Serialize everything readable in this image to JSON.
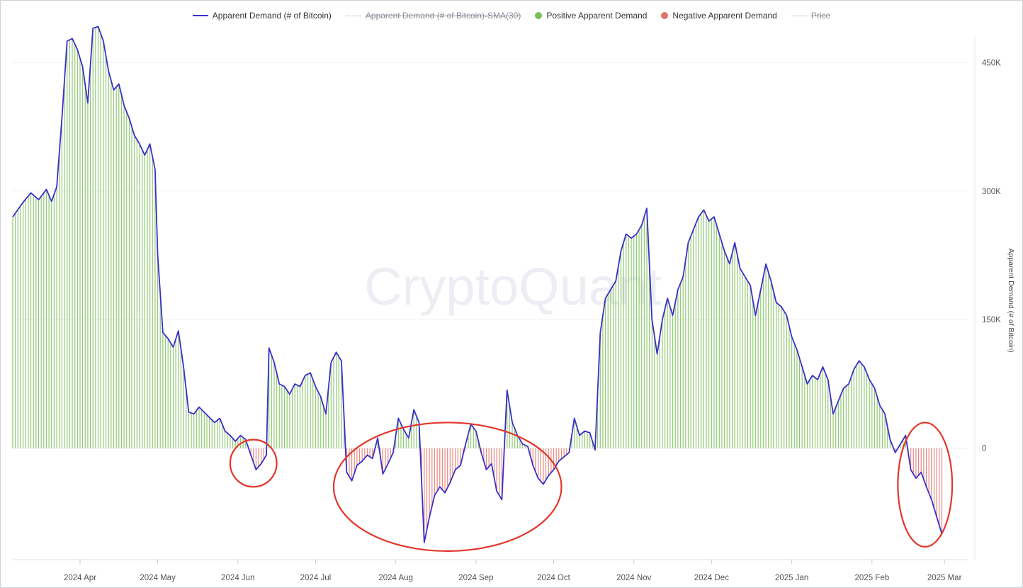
{
  "legend": {
    "demand": "Apparent Demand (# of Bitcoin)",
    "sma": "Apparent Demand (# of Bitcoin)-SMA(30)",
    "positive": "Positive Apparent Demand",
    "negative": "Negative Apparent Demand",
    "price": "Price"
  },
  "watermark": "CryptoQuant",
  "colors": {
    "line": "#3b2fc9",
    "positive": "#7cbf5a",
    "negative": "#e07368",
    "annotation": "#e2372b",
    "grid": "#eef0f3"
  },
  "chart_data": {
    "type": "line",
    "title": "",
    "xlabel": "",
    "ylabel": "Apparent Demand (# of Bitcoin)",
    "ylim": [
      -130000,
      480000
    ],
    "y_ticks": [
      0,
      150000,
      300000,
      450000
    ],
    "y_tick_labels": [
      "0",
      "150K",
      "300K",
      "450K"
    ],
    "x_range": [
      "2024-03-06",
      "2025-03-10"
    ],
    "x_ticks": [
      "2024-04-01",
      "2024-05-01",
      "2024-06-01",
      "2024-07-01",
      "2024-08-01",
      "2024-09-01",
      "2024-10-01",
      "2024-11-01",
      "2024-12-01",
      "2025-01-01",
      "2025-02-01",
      "2025-03-01"
    ],
    "x_tick_labels": [
      "2024 Apr",
      "2024 May",
      "2024 Jun",
      "2024 Jul",
      "2024 Aug",
      "2024 Sep",
      "2024 Oct",
      "2024 Nov",
      "2024 Dec",
      "2025 Jan",
      "2025 Feb",
      "2025 Mar"
    ],
    "grid": true,
    "legend_position": "top-center",
    "series": [
      {
        "name": "Apparent Demand (# of Bitcoin)",
        "points": [
          [
            "2024-03-06",
            270000
          ],
          [
            "2024-03-10",
            287000
          ],
          [
            "2024-03-13",
            298000
          ],
          [
            "2024-03-16",
            290000
          ],
          [
            "2024-03-19",
            302000
          ],
          [
            "2024-03-21",
            288000
          ],
          [
            "2024-03-23",
            305000
          ],
          [
            "2024-03-25",
            385000
          ],
          [
            "2024-03-27",
            475000
          ],
          [
            "2024-03-29",
            478000
          ],
          [
            "2024-03-31",
            465000
          ],
          [
            "2024-04-02",
            445000
          ],
          [
            "2024-04-04",
            403000
          ],
          [
            "2024-04-06",
            490000
          ],
          [
            "2024-04-08",
            492000
          ],
          [
            "2024-04-10",
            475000
          ],
          [
            "2024-04-12",
            440000
          ],
          [
            "2024-04-14",
            418000
          ],
          [
            "2024-04-16",
            425000
          ],
          [
            "2024-04-18",
            400000
          ],
          [
            "2024-04-20",
            385000
          ],
          [
            "2024-04-22",
            365000
          ],
          [
            "2024-04-24",
            355000
          ],
          [
            "2024-04-26",
            342000
          ],
          [
            "2024-04-28",
            355000
          ],
          [
            "2024-04-30",
            325000
          ],
          [
            "2024-05-01",
            225000
          ],
          [
            "2024-05-03",
            135000
          ],
          [
            "2024-05-05",
            128000
          ],
          [
            "2024-05-07",
            118000
          ],
          [
            "2024-05-09",
            137000
          ],
          [
            "2024-05-11",
            95000
          ],
          [
            "2024-05-13",
            42000
          ],
          [
            "2024-05-15",
            40000
          ],
          [
            "2024-05-17",
            48000
          ],
          [
            "2024-05-19",
            42000
          ],
          [
            "2024-05-21",
            36000
          ],
          [
            "2024-05-23",
            30000
          ],
          [
            "2024-05-25",
            35000
          ],
          [
            "2024-05-27",
            20000
          ],
          [
            "2024-05-29",
            15000
          ],
          [
            "2024-05-31",
            8000
          ],
          [
            "2024-06-02",
            15000
          ],
          [
            "2024-06-04",
            10000
          ],
          [
            "2024-06-06",
            -8000
          ],
          [
            "2024-06-08",
            -25000
          ],
          [
            "2024-06-10",
            -18000
          ],
          [
            "2024-06-12",
            -8000
          ],
          [
            "2024-06-13",
            117000
          ],
          [
            "2024-06-15",
            100000
          ],
          [
            "2024-06-17",
            75000
          ],
          [
            "2024-06-19",
            72000
          ],
          [
            "2024-06-21",
            63000
          ],
          [
            "2024-06-23",
            75000
          ],
          [
            "2024-06-25",
            72000
          ],
          [
            "2024-06-27",
            85000
          ],
          [
            "2024-06-29",
            88000
          ],
          [
            "2024-07-01",
            72000
          ],
          [
            "2024-07-03",
            60000
          ],
          [
            "2024-07-05",
            40000
          ],
          [
            "2024-07-07",
            100000
          ],
          [
            "2024-07-09",
            112000
          ],
          [
            "2024-07-11",
            102000
          ],
          [
            "2024-07-13",
            -28000
          ],
          [
            "2024-07-15",
            -38000
          ],
          [
            "2024-07-17",
            -20000
          ],
          [
            "2024-07-19",
            -15000
          ],
          [
            "2024-07-21",
            -8000
          ],
          [
            "2024-07-23",
            -12000
          ],
          [
            "2024-07-25",
            12000
          ],
          [
            "2024-07-27",
            -30000
          ],
          [
            "2024-07-29",
            -18000
          ],
          [
            "2024-07-31",
            -5000
          ],
          [
            "2024-08-02",
            35000
          ],
          [
            "2024-08-04",
            22000
          ],
          [
            "2024-08-06",
            12000
          ],
          [
            "2024-08-08",
            45000
          ],
          [
            "2024-08-10",
            30000
          ],
          [
            "2024-08-12",
            -110000
          ],
          [
            "2024-08-14",
            -80000
          ],
          [
            "2024-08-16",
            -55000
          ],
          [
            "2024-08-18",
            -45000
          ],
          [
            "2024-08-20",
            -52000
          ],
          [
            "2024-08-22",
            -40000
          ],
          [
            "2024-08-24",
            -25000
          ],
          [
            "2024-08-26",
            -20000
          ],
          [
            "2024-08-28",
            5000
          ],
          [
            "2024-08-30",
            28000
          ],
          [
            "2024-09-01",
            20000
          ],
          [
            "2024-09-03",
            -5000
          ],
          [
            "2024-09-05",
            -25000
          ],
          [
            "2024-09-07",
            -18000
          ],
          [
            "2024-09-09",
            -50000
          ],
          [
            "2024-09-11",
            -60000
          ],
          [
            "2024-09-13",
            68000
          ],
          [
            "2024-09-15",
            30000
          ],
          [
            "2024-09-17",
            15000
          ],
          [
            "2024-09-19",
            5000
          ],
          [
            "2024-09-21",
            2000
          ],
          [
            "2024-09-23",
            -20000
          ],
          [
            "2024-09-25",
            -35000
          ],
          [
            "2024-09-27",
            -42000
          ],
          [
            "2024-09-29",
            -32000
          ],
          [
            "2024-10-01",
            -25000
          ],
          [
            "2024-10-03",
            -15000
          ],
          [
            "2024-10-05",
            -10000
          ],
          [
            "2024-10-07",
            -5000
          ],
          [
            "2024-10-09",
            35000
          ],
          [
            "2024-10-11",
            15000
          ],
          [
            "2024-10-13",
            20000
          ],
          [
            "2024-10-15",
            18000
          ],
          [
            "2024-10-17",
            -2000
          ],
          [
            "2024-10-19",
            135000
          ],
          [
            "2024-10-21",
            175000
          ],
          [
            "2024-10-23",
            185000
          ],
          [
            "2024-10-25",
            195000
          ],
          [
            "2024-10-27",
            230000
          ],
          [
            "2024-10-29",
            250000
          ],
          [
            "2024-10-31",
            245000
          ],
          [
            "2024-11-02",
            250000
          ],
          [
            "2024-11-04",
            260000
          ],
          [
            "2024-11-06",
            280000
          ],
          [
            "2024-11-08",
            150000
          ],
          [
            "2024-11-10",
            110000
          ],
          [
            "2024-11-12",
            150000
          ],
          [
            "2024-11-14",
            175000
          ],
          [
            "2024-11-16",
            155000
          ],
          [
            "2024-11-18",
            185000
          ],
          [
            "2024-11-20",
            200000
          ],
          [
            "2024-11-22",
            240000
          ],
          [
            "2024-11-24",
            255000
          ],
          [
            "2024-11-26",
            270000
          ],
          [
            "2024-11-28",
            278000
          ],
          [
            "2024-11-30",
            265000
          ],
          [
            "2024-12-02",
            270000
          ],
          [
            "2024-12-04",
            250000
          ],
          [
            "2024-12-06",
            230000
          ],
          [
            "2024-12-08",
            215000
          ],
          [
            "2024-12-10",
            240000
          ],
          [
            "2024-12-12",
            210000
          ],
          [
            "2024-12-14",
            200000
          ],
          [
            "2024-12-16",
            190000
          ],
          [
            "2024-12-18",
            155000
          ],
          [
            "2024-12-20",
            185000
          ],
          [
            "2024-12-22",
            215000
          ],
          [
            "2024-12-24",
            195000
          ],
          [
            "2024-12-26",
            170000
          ],
          [
            "2024-12-28",
            165000
          ],
          [
            "2024-12-30",
            155000
          ],
          [
            "2025-01-01",
            130000
          ],
          [
            "2025-01-03",
            115000
          ],
          [
            "2025-01-05",
            95000
          ],
          [
            "2025-01-07",
            75000
          ],
          [
            "2025-01-09",
            85000
          ],
          [
            "2025-01-11",
            80000
          ],
          [
            "2025-01-13",
            95000
          ],
          [
            "2025-01-15",
            80000
          ],
          [
            "2025-01-17",
            40000
          ],
          [
            "2025-01-19",
            55000
          ],
          [
            "2025-01-21",
            70000
          ],
          [
            "2025-01-23",
            75000
          ],
          [
            "2025-01-25",
            92000
          ],
          [
            "2025-01-27",
            102000
          ],
          [
            "2025-01-29",
            95000
          ],
          [
            "2025-01-31",
            80000
          ],
          [
            "2025-02-02",
            70000
          ],
          [
            "2025-02-04",
            50000
          ],
          [
            "2025-02-06",
            40000
          ],
          [
            "2025-02-08",
            10000
          ],
          [
            "2025-02-10",
            -5000
          ],
          [
            "2025-02-12",
            5000
          ],
          [
            "2025-02-14",
            15000
          ],
          [
            "2025-02-16",
            -25000
          ],
          [
            "2025-02-18",
            -35000
          ],
          [
            "2025-02-20",
            -28000
          ],
          [
            "2025-02-22",
            -45000
          ],
          [
            "2025-02-24",
            -60000
          ],
          [
            "2025-02-26",
            -80000
          ],
          [
            "2025-02-28",
            -100000
          ]
        ]
      }
    ]
  }
}
